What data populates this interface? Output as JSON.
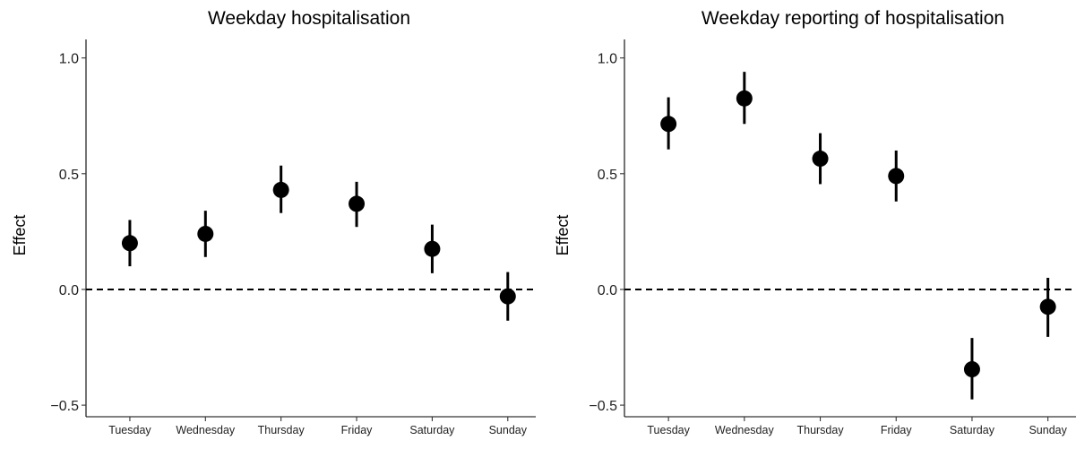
{
  "chart_data": [
    {
      "type": "scatter",
      "title": "Weekday hospitalisation",
      "xlabel": "",
      "ylabel": "Effect",
      "categories": [
        "Tuesday",
        "Wednesday",
        "Thursday",
        "Friday",
        "Saturday",
        "Sunday"
      ],
      "values": [
        0.2,
        0.24,
        0.43,
        0.37,
        0.175,
        -0.03
      ],
      "lower": [
        0.1,
        0.14,
        0.33,
        0.27,
        0.07,
        -0.135
      ],
      "upper": [
        0.3,
        0.34,
        0.535,
        0.465,
        0.28,
        0.075
      ],
      "ylim": [
        -0.55,
        1.08
      ],
      "yticks": [
        -0.5,
        0.0,
        0.5,
        1.0
      ],
      "ytick_labels": [
        "−0.5",
        "0.0",
        "0.5",
        "1.0"
      ],
      "reference_line": 0.0,
      "grid": false
    },
    {
      "type": "scatter",
      "title": "Weekday reporting of hospitalisation",
      "xlabel": "",
      "ylabel": "Effect",
      "categories": [
        "Tuesday",
        "Wednesday",
        "Thursday",
        "Friday",
        "Saturday",
        "Sunday"
      ],
      "values": [
        0.715,
        0.825,
        0.565,
        0.49,
        -0.345,
        -0.075
      ],
      "lower": [
        0.605,
        0.715,
        0.455,
        0.38,
        -0.475,
        -0.205
      ],
      "upper": [
        0.83,
        0.94,
        0.675,
        0.6,
        -0.21,
        0.05
      ],
      "ylim": [
        -0.55,
        1.08
      ],
      "yticks": [
        -0.5,
        0.0,
        0.5,
        1.0
      ],
      "ytick_labels": [
        "−0.5",
        "0.0",
        "0.5",
        "1.0"
      ],
      "reference_line": 0.0,
      "grid": false
    }
  ]
}
